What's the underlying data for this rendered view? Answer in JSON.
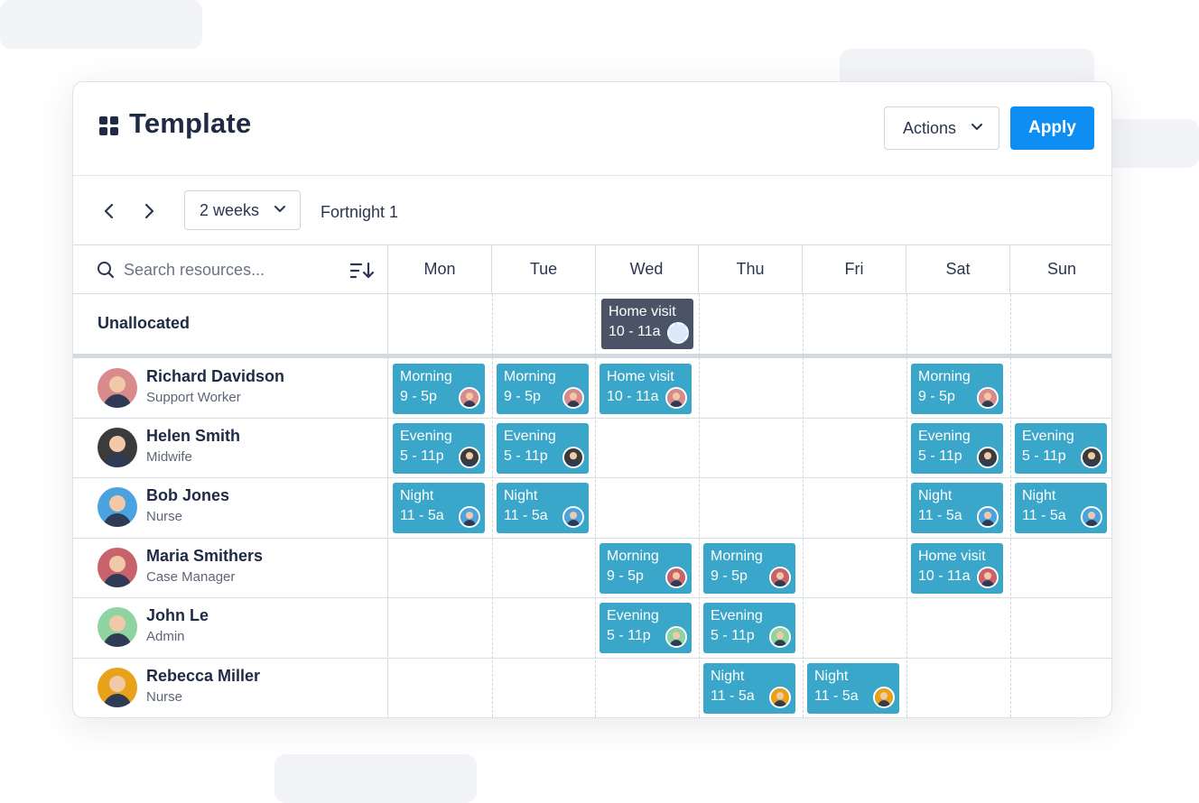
{
  "header": {
    "title": "Template",
    "actions_label": "Actions",
    "apply_label": "Apply"
  },
  "toolbar": {
    "range_label": "2 weeks",
    "period_label": "Fortnight 1"
  },
  "search": {
    "placeholder": "Search resources..."
  },
  "days": [
    "Mon",
    "Tue",
    "Wed",
    "Thu",
    "Fri",
    "Sat",
    "Sun"
  ],
  "unallocated": {
    "label": "Unallocated",
    "shifts": [
      {
        "label": "Home visit",
        "time": "10 - 11a"
      }
    ]
  },
  "resources": [
    {
      "name": "Richard Davidson",
      "role": "Support Worker",
      "avatar_color": "#d98a8a",
      "shifts": {
        "mon": {
          "label": "Morning",
          "time": "9 - 5p"
        },
        "tue": {
          "label": "Morning",
          "time": "9 - 5p"
        },
        "wed": {
          "label": "Home visit",
          "time": "10 - 11a"
        },
        "sat": {
          "label": "Morning",
          "time": "9 - 5p"
        }
      }
    },
    {
      "name": "Helen Smith",
      "role": "Midwife",
      "avatar_color": "#3b3b3b",
      "shifts": {
        "mon": {
          "label": "Evening",
          "time": "5 - 11p"
        },
        "tue": {
          "label": "Evening",
          "time": "5 - 11p"
        },
        "sat": {
          "label": "Evening",
          "time": "5 - 11p"
        },
        "sun": {
          "label": "Evening",
          "time": "5 - 11p"
        }
      }
    },
    {
      "name": "Bob Jones",
      "role": "Nurse",
      "avatar_color": "#4aa3df",
      "shifts": {
        "mon": {
          "label": "Night",
          "time": "11 - 5a"
        },
        "tue": {
          "label": "Night",
          "time": "11 - 5a"
        },
        "sat": {
          "label": "Night",
          "time": "11 - 5a"
        },
        "sun": {
          "label": "Night",
          "time": "11 - 5a"
        }
      }
    },
    {
      "name": "Maria Smithers",
      "role": "Case Manager",
      "avatar_color": "#c9636b",
      "shifts": {
        "wed": {
          "label": "Morning",
          "time": "9 - 5p"
        },
        "thu": {
          "label": "Morning",
          "time": "9 - 5p"
        },
        "sat": {
          "label": "Home visit",
          "time": "10 - 11a"
        }
      }
    },
    {
      "name": "John Le",
      "role": "Admin",
      "avatar_color": "#8fd3a0",
      "shifts": {
        "wed": {
          "label": "Evening",
          "time": "5 - 11p"
        },
        "thu": {
          "label": "Evening",
          "time": "5 - 11p"
        }
      }
    },
    {
      "name": "Rebecca Miller",
      "role": "Nurse",
      "avatar_color": "#e8a21a",
      "shifts": {
        "thu": {
          "label": "Night",
          "time": "11 - 5a"
        },
        "fri": {
          "label": "Night",
          "time": "11 - 5a"
        }
      }
    }
  ]
}
